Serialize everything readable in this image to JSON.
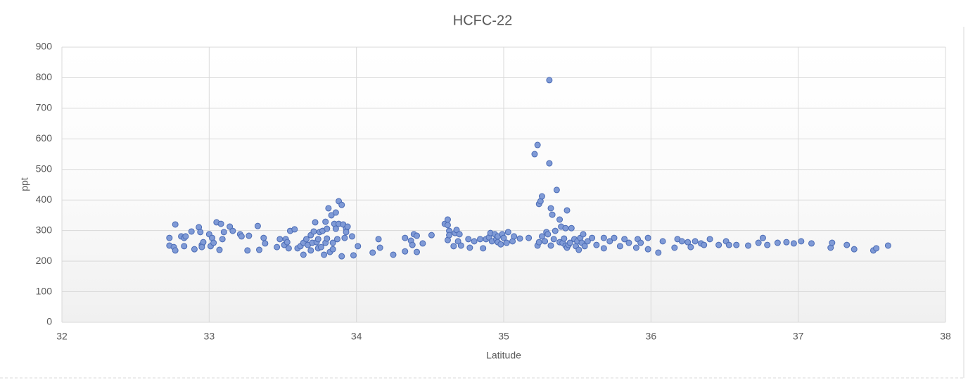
{
  "chart_data": {
    "type": "scatter",
    "title": "HCFC-22",
    "x_label": "Latitude",
    "y_label": "ppt",
    "xlim": [
      32,
      38
    ],
    "xticks": [
      32,
      33,
      34,
      35,
      36,
      37,
      38
    ],
    "ylim": [
      0,
      900
    ],
    "yticks": [
      0,
      100,
      200,
      300,
      400,
      500,
      600,
      700,
      800,
      900
    ],
    "grid": true,
    "color": "#7f9ad6",
    "x": [
      32.73,
      32.73,
      32.77,
      32.76,
      32.77,
      32.81,
      32.83,
      32.83,
      32.84,
      32.88,
      32.9,
      32.93,
      32.94,
      32.95,
      32.96,
      32.95,
      33.0,
      33.02,
      33.01,
      33.03,
      33.05,
      33.07,
      33.08,
      33.09,
      33.1,
      33.14,
      33.16,
      33.21,
      33.22,
      33.26,
      33.27,
      33.33,
      33.34,
      33.37,
      33.38,
      33.46,
      33.48,
      33.51,
      33.52,
      33.53,
      33.54,
      33.55,
      33.58,
      33.6,
      33.62,
      33.64,
      33.64,
      33.66,
      33.67,
      33.69,
      33.69,
      33.7,
      33.71,
      33.72,
      33.73,
      33.74,
      33.74,
      33.75,
      33.76,
      33.77,
      33.78,
      33.79,
      33.79,
      33.8,
      33.8,
      33.81,
      33.82,
      33.83,
      33.84,
      33.84,
      33.85,
      33.86,
      33.86,
      33.87,
      33.88,
      33.88,
      33.9,
      33.9,
      33.91,
      33.92,
      33.93,
      33.93,
      33.94,
      33.97,
      33.98,
      34.01,
      34.11,
      34.15,
      34.16,
      34.25,
      34.33,
      34.33,
      34.37,
      34.38,
      34.39,
      34.41,
      34.41,
      34.45,
      34.51,
      34.6,
      34.62,
      34.62,
      34.63,
      34.62,
      34.63,
      34.66,
      34.67,
      34.68,
      34.69,
      34.7,
      34.71,
      34.76,
      34.77,
      34.8,
      34.84,
      34.86,
      34.88,
      34.9,
      34.91,
      34.92,
      34.94,
      34.95,
      34.96,
      34.96,
      34.98,
      34.99,
      35.0,
      35.02,
      35.03,
      35.06,
      35.07,
      35.11,
      35.17,
      35.21,
      35.23,
      35.23,
      35.24,
      35.24,
      35.25,
      35.26,
      35.26,
      35.28,
      35.29,
      35.3,
      35.31,
      35.31,
      35.32,
      35.32,
      35.33,
      35.34,
      35.35,
      35.36,
      35.38,
      35.38,
      35.39,
      35.4,
      35.41,
      35.42,
      35.42,
      35.43,
      35.43,
      35.44,
      35.45,
      35.46,
      35.48,
      35.49,
      35.5,
      35.51,
      35.52,
      35.53,
      35.54,
      35.55,
      35.57,
      35.6,
      35.63,
      35.68,
      35.68,
      35.72,
      35.75,
      35.79,
      35.82,
      35.85,
      35.9,
      35.91,
      35.93,
      35.98,
      35.98,
      36.05,
      36.08,
      36.16,
      36.18,
      36.21,
      36.25,
      36.27,
      36.3,
      36.34,
      36.36,
      36.4,
      36.46,
      36.51,
      36.53,
      36.58,
      36.66,
      36.73,
      36.76,
      36.79,
      36.86,
      36.92,
      36.97,
      37.02,
      37.09,
      37.22,
      37.23,
      37.33,
      37.38,
      37.51,
      37.53,
      37.61
    ],
    "values": [
      276,
      251,
      320,
      246,
      235,
      281,
      276,
      249,
      281,
      297,
      239,
      311,
      295,
      253,
      262,
      246,
      288,
      276,
      249,
      260,
      327,
      237,
      322,
      272,
      295,
      313,
      299,
      288,
      281,
      235,
      283,
      315,
      237,
      276,
      258,
      246,
      272,
      253,
      272,
      262,
      242,
      299,
      304,
      242,
      249,
      260,
      221,
      272,
      253,
      285,
      235,
      260,
      297,
      327,
      262,
      242,
      272,
      295,
      246,
      299,
      221,
      260,
      329,
      274,
      306,
      373,
      230,
      350,
      260,
      239,
      322,
      359,
      306,
      272,
      396,
      322,
      384,
      216,
      320,
      276,
      306,
      295,
      313,
      281,
      219,
      249,
      228,
      272,
      244,
      221,
      276,
      232,
      267,
      253,
      288,
      230,
      283,
      258,
      285,
      322,
      336,
      318,
      299,
      269,
      285,
      249,
      292,
      302,
      265,
      288,
      251,
      272,
      244,
      265,
      272,
      242,
      272,
      278,
      292,
      265,
      288,
      272,
      281,
      262,
      255,
      288,
      276,
      260,
      295,
      265,
      281,
      274,
      276,
      550,
      580,
      251,
      262,
      387,
      396,
      281,
      412,
      265,
      295,
      288,
      792,
      520,
      373,
      251,
      352,
      272,
      299,
      433,
      336,
      262,
      313,
      260,
      274,
      251,
      308,
      366,
      244,
      253,
      260,
      308,
      272,
      249,
      265,
      237,
      276,
      260,
      288,
      249,
      265,
      276,
      253,
      276,
      242,
      265,
      276,
      249,
      272,
      260,
      244,
      272,
      260,
      276,
      239,
      228,
      265,
      244,
      272,
      265,
      262,
      246,
      265,
      258,
      253,
      272,
      253,
      265,
      253,
      253,
      251,
      260,
      276,
      253,
      260,
      262,
      258,
      265,
      258,
      244,
      260,
      253,
      239,
      235,
      242,
      251
    ]
  }
}
